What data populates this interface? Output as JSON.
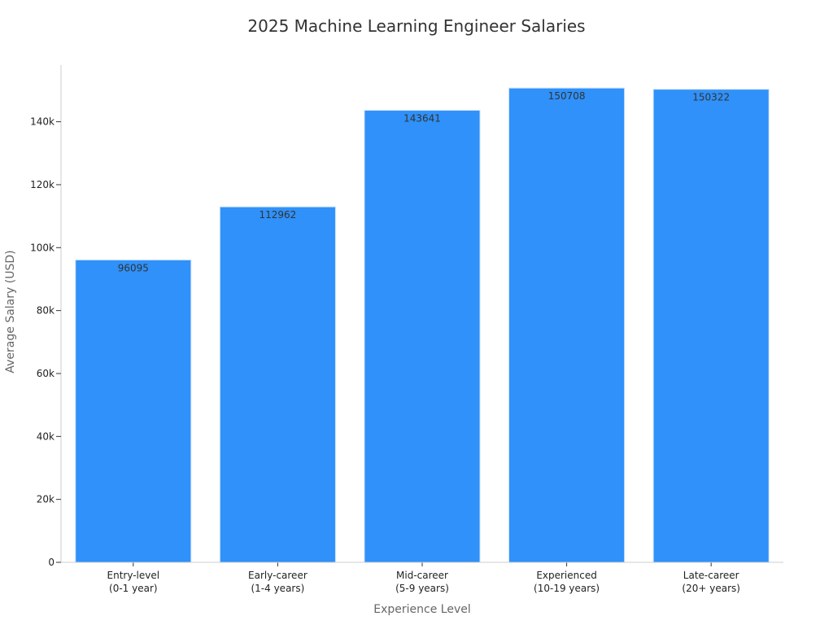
{
  "chart_data": {
    "type": "bar",
    "title": "2025 Machine Learning Engineer Salaries",
    "xlabel": "Experience Level",
    "ylabel": "Average Salary (USD)",
    "categories": [
      [
        "Entry-level",
        "(0-1 year)"
      ],
      [
        "Early-career",
        "(1-4 years)"
      ],
      [
        "Mid-career",
        "(5-9 years)"
      ],
      [
        "Experienced",
        "(10-19 years)"
      ],
      [
        "Late-career",
        "(20+ years)"
      ]
    ],
    "values": [
      96095,
      112962,
      143641,
      150708,
      150322
    ],
    "data_labels": [
      "96095",
      "112962",
      "143641",
      "150708",
      "150322"
    ],
    "ylim": [
      0,
      158000
    ],
    "yticks": [
      0,
      20000,
      40000,
      60000,
      80000,
      100000,
      120000,
      140000
    ],
    "ytick_labels": [
      "0",
      "20k",
      "40k",
      "60k",
      "80k",
      "100k",
      "120k",
      "140k"
    ],
    "bar_color": "#2f91f9",
    "grid": false,
    "legend": "none"
  }
}
